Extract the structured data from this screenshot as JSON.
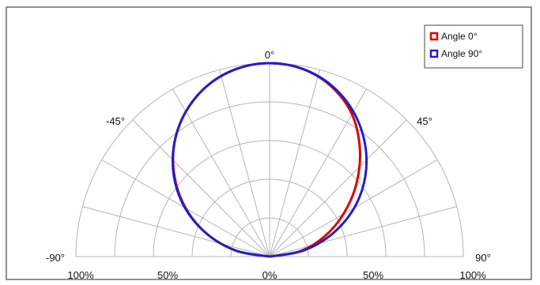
{
  "chart_data": {
    "type": "polar",
    "layout": "semicircle",
    "title": "",
    "angle_range_deg": [
      -90,
      90
    ],
    "angle_gridlines_deg": [
      -90,
      -75,
      -60,
      -45,
      -30,
      -15,
      0,
      15,
      30,
      45,
      60,
      75,
      90
    ],
    "radial_range_percent": [
      0,
      100
    ],
    "radial_rings_percent": [
      20,
      40,
      60,
      80,
      100
    ],
    "angle_tick_labels": [
      {
        "angle": -90,
        "text": "-90°"
      },
      {
        "angle": -45,
        "text": "-45°"
      },
      {
        "angle": 0,
        "text": "0°"
      },
      {
        "angle": 45,
        "text": "45°"
      },
      {
        "angle": 90,
        "text": "90°"
      }
    ],
    "radial_tick_labels": [
      "100%",
      "50%",
      "0%",
      "50%",
      "100%"
    ],
    "grid": true,
    "legend_position": "top-right",
    "angles_deg": [
      -90,
      -80,
      -70,
      -60,
      -50,
      -40,
      -30,
      -20,
      -10,
      0,
      10,
      20,
      30,
      40,
      50,
      60,
      70,
      80,
      90
    ],
    "series": [
      {
        "name": "Angle 0°",
        "color": "#dd0000",
        "values": [
          0,
          17.5,
          34.5,
          50,
          64,
          76.5,
          86.5,
          94,
          98.5,
          100,
          98.5,
          93.5,
          85,
          72.5,
          58.5,
          44,
          30,
          16,
          0
        ]
      },
      {
        "name": "Angle 90°",
        "color": "#2020c8",
        "values": [
          0,
          17.5,
          34.5,
          50.5,
          64.5,
          76.5,
          86.5,
          94,
          98.5,
          100,
          98.5,
          94,
          86.5,
          76.5,
          64.5,
          50.5,
          34.5,
          17.5,
          0
        ]
      }
    ]
  }
}
